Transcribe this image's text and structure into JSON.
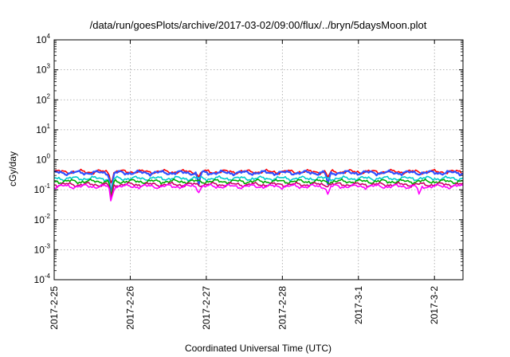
{
  "chart_data": {
    "type": "line",
    "title": "/data/run/goesPlots/archive/2017-03-02/09:00/flux/../bryn/5daysMoon.plot",
    "xlabel": "Coordinated Universal Time (UTC)",
    "ylabel": "cGy/day",
    "yscale": "log",
    "ylim": [
      0.0001,
      10000
    ],
    "y_ticks": [
      {
        "base": "10",
        "exp": "-4",
        "value": 0.0001
      },
      {
        "base": "10",
        "exp": "-3",
        "value": 0.001
      },
      {
        "base": "10",
        "exp": "-2",
        "value": 0.01
      },
      {
        "base": "10",
        "exp": "-1",
        "value": 0.1
      },
      {
        "base": "10",
        "exp": "0",
        "value": 1
      },
      {
        "base": "10",
        "exp": "1",
        "value": 10
      },
      {
        "base": "10",
        "exp": "2",
        "value": 100
      },
      {
        "base": "10",
        "exp": "3",
        "value": 1000
      },
      {
        "base": "10",
        "exp": "4",
        "value": 10000
      }
    ],
    "xlim": [
      "2017-02-25 00:00",
      "2017-03-02 09:00"
    ],
    "x_ticks": [
      "2017-2-25",
      "2017-2-26",
      "2017-2-27",
      "2017-2-28",
      "2017-3-1",
      "2017-3-2"
    ],
    "grid": true,
    "legend": "none",
    "series": [
      {
        "color": "#ff0000",
        "typical": 0.4,
        "dips": [
          {
            "x": 0.75,
            "value": 0.16
          },
          {
            "x": 1.9,
            "value": 0.26
          },
          {
            "x": 3.6,
            "value": 0.26
          }
        ]
      },
      {
        "color": "#3050ff",
        "typical": 0.37,
        "dips": [
          {
            "x": 0.75,
            "value": 0.05
          },
          {
            "x": 1.9,
            "value": 0.15
          },
          {
            "x": 3.6,
            "value": 0.15
          }
        ]
      },
      {
        "color": "#00cccc",
        "typical": 0.24,
        "dips": [
          {
            "x": 0.75,
            "value": 0.06
          }
        ]
      },
      {
        "color": "#00aa00",
        "typical": 0.19,
        "dips": [
          {
            "x": 0.75,
            "value": 0.055
          }
        ]
      },
      {
        "color": "#cc0066",
        "typical": 0.15,
        "dips": [
          {
            "x": 0.75,
            "value": 0.045
          }
        ]
      },
      {
        "color": "#ff00ff",
        "typical": 0.13,
        "dips": [
          {
            "x": 0.75,
            "value": 0.038
          },
          {
            "x": 1.9,
            "value": 0.08
          },
          {
            "x": 3.6,
            "value": 0.07
          },
          {
            "x": 4.8,
            "value": 0.07
          }
        ]
      }
    ]
  }
}
